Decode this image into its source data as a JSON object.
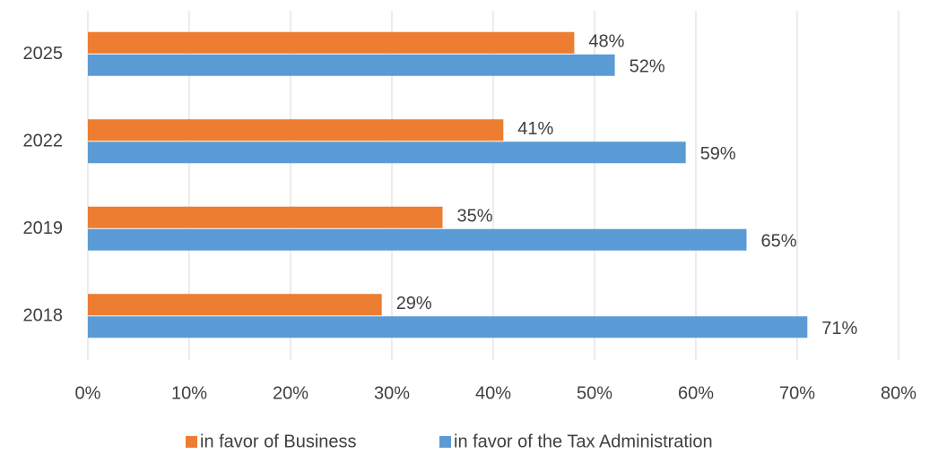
{
  "chart_data": {
    "type": "hbar",
    "categories": [
      "2018",
      "2019",
      "2022",
      "2025"
    ],
    "series": [
      {
        "name": "in favor of Business",
        "color": "#ed7d31",
        "values": [
          29,
          35,
          41,
          48
        ],
        "value_labels": [
          "29%",
          "35%",
          "41%",
          "48%"
        ]
      },
      {
        "name": "in favor of the Tax Administration",
        "color": "#5b9bd5",
        "values": [
          71,
          65,
          59,
          52
        ],
        "value_labels": [
          "71%",
          "65%",
          "59%",
          "52%"
        ]
      }
    ],
    "xlim": [
      0,
      80
    ],
    "xticks": [
      {
        "value": 0,
        "label": "0%"
      },
      {
        "value": 10,
        "label": "10%"
      },
      {
        "value": 20,
        "label": "20%"
      },
      {
        "value": 30,
        "label": "30%"
      },
      {
        "value": 40,
        "label": "40%"
      },
      {
        "value": 50,
        "label": "50%"
      },
      {
        "value": 60,
        "label": "60%"
      },
      {
        "value": 70,
        "label": "70%"
      },
      {
        "value": 80,
        "label": "80%"
      }
    ],
    "grid": true,
    "legend": "bottom"
  }
}
